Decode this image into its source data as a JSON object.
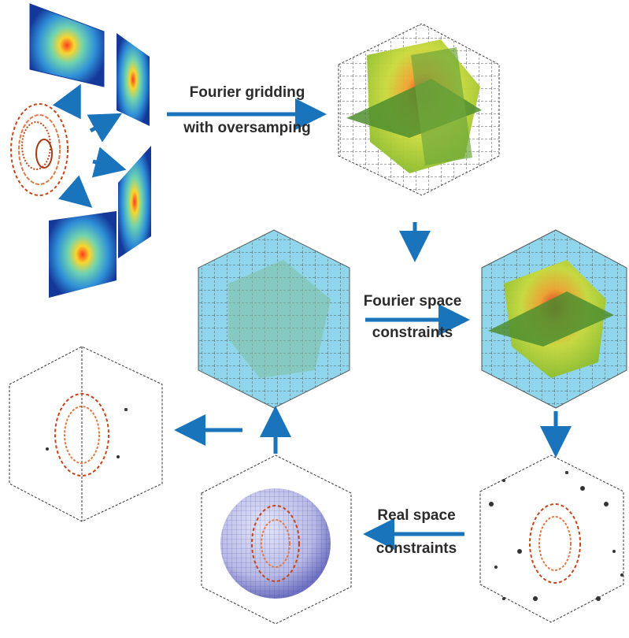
{
  "labels": {
    "fourier_gridding_line1": "Fourier gridding",
    "fourier_gridding_line2": "with oversamping",
    "fourier_space_line1": "Fourier space",
    "fourier_space_line2": "constraints",
    "real_space_line1": "Real space",
    "real_space_line2": "constraints"
  },
  "colors": {
    "arrow": "#1a74bc",
    "panel_dark": "#14389a",
    "panel_mid": "#2f8fd8",
    "heat_green": "#9ccc2e",
    "heat_yellow": "#ece33a",
    "heat_red": "#d9251d",
    "fourier_cube": "#8fd6ec",
    "plane_green": "#4f8e2f",
    "protein": "#c74418",
    "sphere": "#5659b4"
  }
}
